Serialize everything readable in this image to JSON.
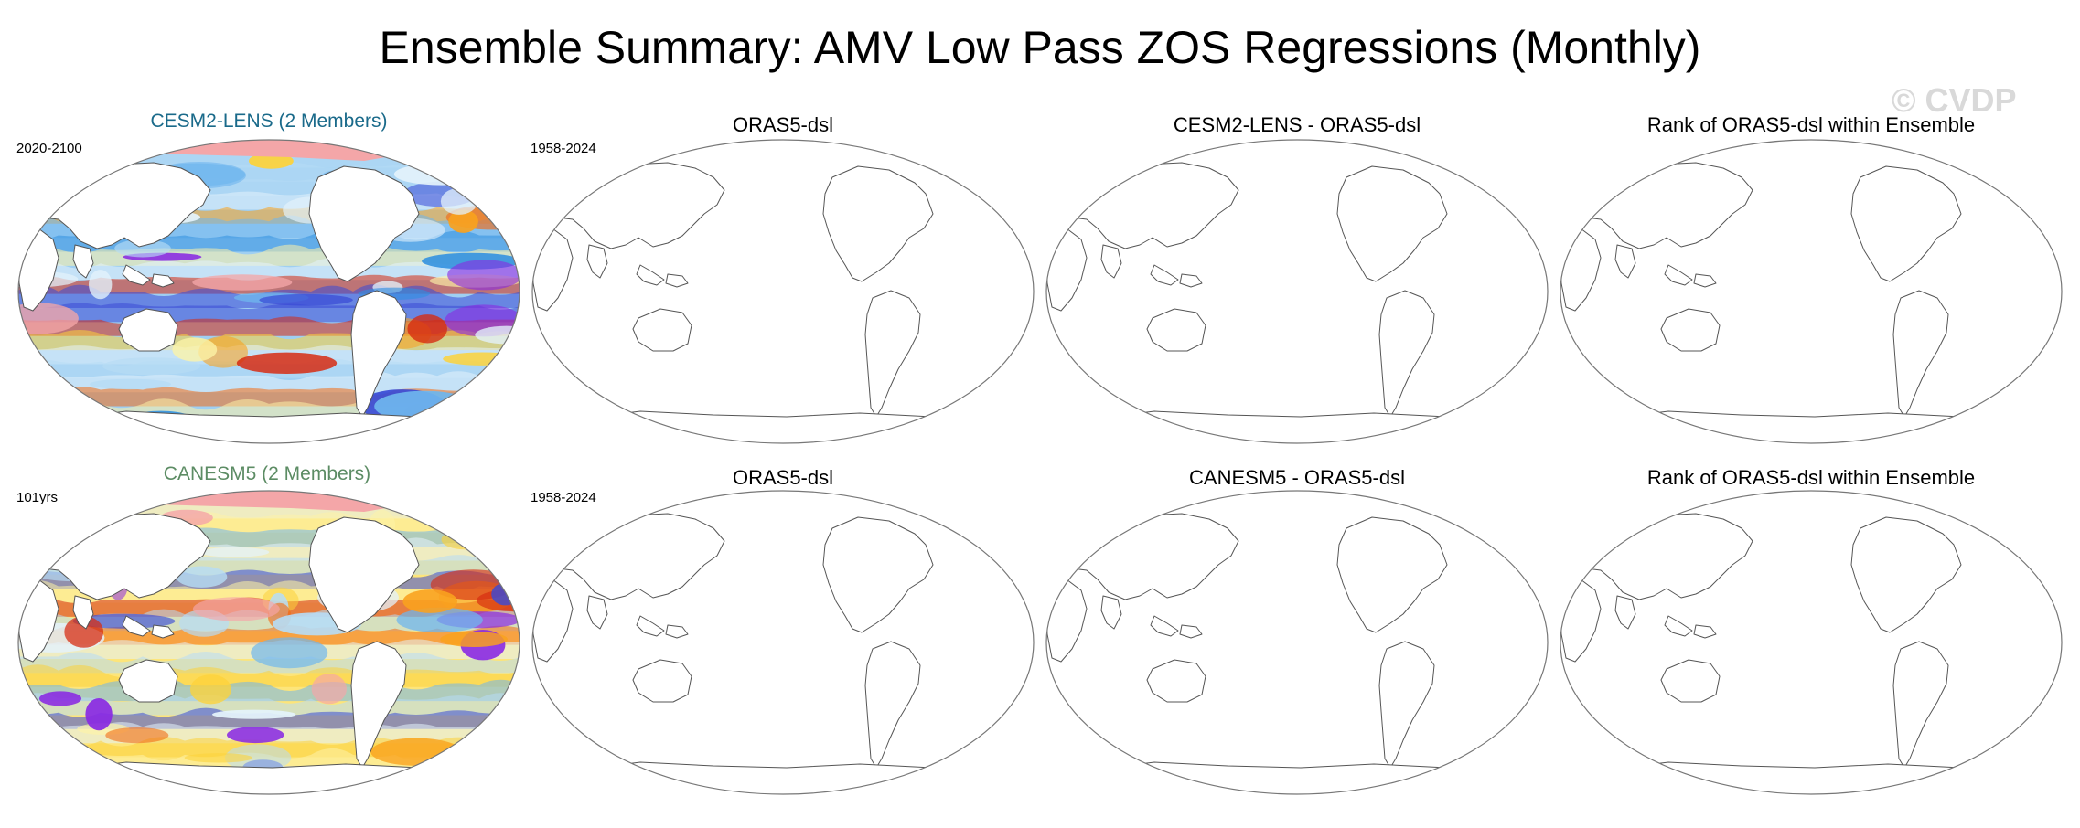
{
  "title": "Ensemble Summary: AMV Low Pass ZOS Regressions (Monthly)",
  "watermark": "© CVDP",
  "rows": [
    {
      "period_label": "2020-2100",
      "obs_period_label": "1958-2024",
      "panels": [
        {
          "title": "CESM2-LENS (2 Members)",
          "kind": "model-field",
          "title_color": "#1a6a8a"
        },
        {
          "title": "ORAS5-dsl",
          "kind": "blank-map"
        },
        {
          "title": "CESM2-LENS - ORAS5-dsl",
          "kind": "blank-map"
        },
        {
          "title": "Rank of ORAS5-dsl within Ensemble",
          "kind": "blank-map"
        }
      ]
    },
    {
      "period_label": "101yrs",
      "obs_period_label": "1958-2024",
      "panels": [
        {
          "title": "CANESM5 (2 Members)",
          "kind": "model-field",
          "title_color": "#5c8c64"
        },
        {
          "title": "ORAS5-dsl",
          "kind": "blank-map"
        },
        {
          "title": "CANESM5 - ORAS5-dsl",
          "kind": "blank-map"
        },
        {
          "title": "Rank of ORAS5-dsl within Ensemble",
          "kind": "blank-map"
        }
      ]
    }
  ],
  "colors": {
    "land": "#ffffff",
    "coastline": "#555555",
    "map_border": "#777777",
    "palette": [
      "#8a2be2",
      "#3a4bd6",
      "#2f8fe0",
      "#6fb6ee",
      "#b7dcf5",
      "#e3f2fb",
      "#fdf3a8",
      "#fcd23b",
      "#f9a21e",
      "#f26b14",
      "#d62a10",
      "#f4a6a8"
    ]
  }
}
